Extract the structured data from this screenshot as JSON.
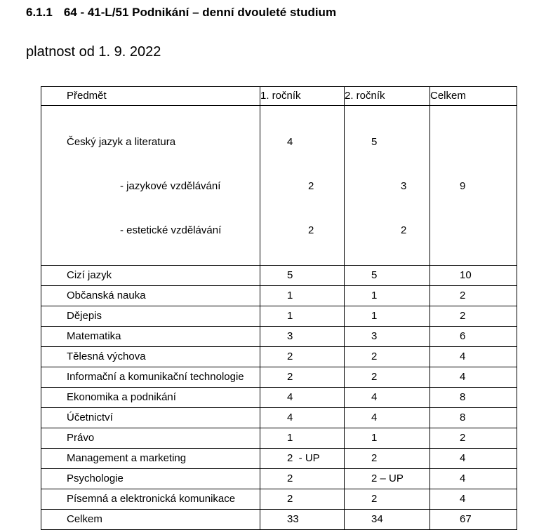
{
  "heading": {
    "number": "6.1.1",
    "title": "64 - 41-L/51 Podnikání – denní dvouleté studium"
  },
  "subtitle": "platnost od 1. 9. 2022",
  "table": {
    "headers": {
      "subject": "Předmět",
      "year1": "1. ročník",
      "year2": "2. ročník",
      "total": "Celkem"
    },
    "subject_block": {
      "subject": "Český jazyk a literatura",
      "year1": "4",
      "year2": "5",
      "total": "9",
      "subrows": [
        {
          "label": "- jazykové vzdělávání",
          "year1": "2",
          "year2": "3"
        },
        {
          "label": "- estetické vzdělávání",
          "year1": "2",
          "year2": "2"
        }
      ]
    },
    "rows": [
      {
        "subject": "Cizí jazyk",
        "year1": "5",
        "year2": "5",
        "total": "10"
      },
      {
        "subject": "Občanská nauka",
        "year1": "1",
        "year2": "1",
        "total": "2"
      },
      {
        "subject": "Dějepis",
        "year1": "1",
        "year2": "1",
        "total": "2"
      },
      {
        "subject": "Matematika",
        "year1": "3",
        "year2": "3",
        "total": "6"
      },
      {
        "subject": "Tělesná výchova",
        "year1": "2",
        "year2": "2",
        "total": "4"
      },
      {
        "subject": "Informační a komunikační technologie",
        "year1": "2",
        "year2": "2",
        "total": "4"
      },
      {
        "subject": "Ekonomika a podnikání",
        "year1": "4",
        "year2": "4",
        "total": "8"
      },
      {
        "subject": "Účetnictví",
        "year1": "4",
        "year2": "4",
        "total": "8"
      },
      {
        "subject": "Právo",
        "year1": "1",
        "year2": "1",
        "total": "2"
      },
      {
        "subject": "Management a marketing",
        "year1": "2  - UP",
        "year2": "2",
        "total": "4"
      },
      {
        "subject": "Psychologie",
        "year1": "2",
        "year2": "2 – UP",
        "total": "4"
      },
      {
        "subject": "Písemná a elektronická komunikace",
        "year1": "2",
        "year2": "2",
        "total": "4"
      },
      {
        "subject": "Celkem",
        "year1": "33",
        "year2": "34",
        "total": "67"
      }
    ]
  }
}
